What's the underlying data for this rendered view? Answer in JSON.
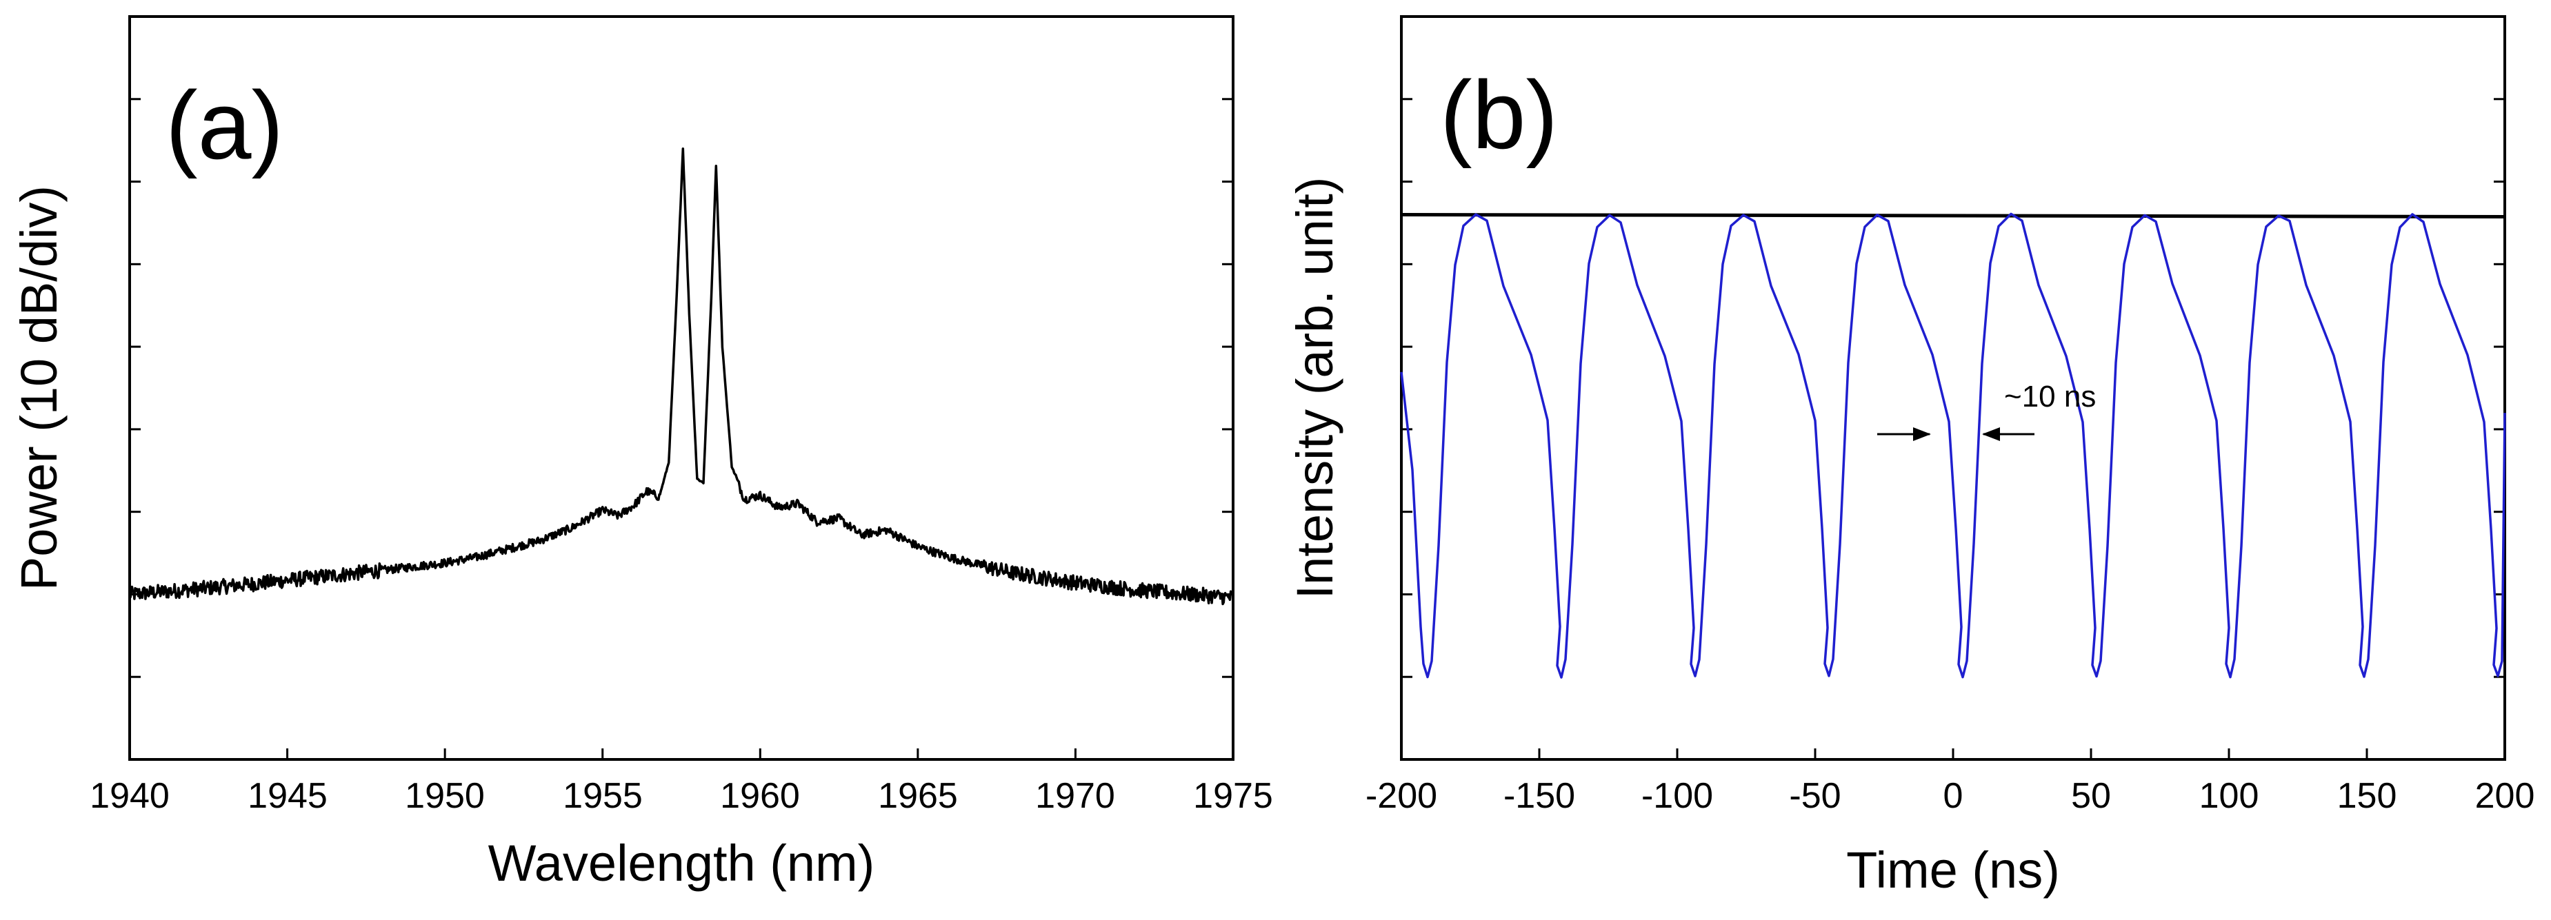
{
  "chart_data": [
    {
      "type": "line",
      "panel_label": "(a)",
      "xlabel": "Wavelength (nm)",
      "ylabel": "Power (10 dB/div)",
      "xlim": [
        1940,
        1975
      ],
      "ylim": [
        0,
        9
      ],
      "x_ticks": [
        "1940",
        "1945",
        "1950",
        "1955",
        "1960",
        "1965",
        "1970",
        "1975"
      ],
      "y_tick_values": [
        1,
        2,
        3,
        4,
        5,
        6,
        7,
        8
      ],
      "grid": false,
      "series": [
        {
          "name": "spectrum",
          "color": "#000000",
          "x": [
            1940,
            1942,
            1944,
            1946,
            1948,
            1950,
            1951,
            1952,
            1953,
            1954,
            1955,
            1955.5,
            1956,
            1956.4,
            1956.8,
            1957.1,
            1957.35,
            1957.55,
            1957.75,
            1958.0,
            1958.2,
            1958.45,
            1958.6,
            1958.8,
            1959.1,
            1959.5,
            1960,
            1960.6,
            1961.2,
            1961.8,
            1962.5,
            1963.2,
            1964,
            1965,
            1966,
            1967,
            1968,
            1970,
            1972,
            1975
          ],
          "y": [
            2.0,
            2.06,
            2.13,
            2.21,
            2.29,
            2.38,
            2.45,
            2.55,
            2.65,
            2.8,
            3.02,
            2.95,
            3.08,
            3.25,
            3.18,
            3.6,
            5.6,
            7.4,
            5.4,
            3.4,
            3.35,
            5.6,
            7.2,
            5.0,
            3.55,
            3.15,
            3.2,
            3.05,
            3.1,
            2.88,
            2.92,
            2.72,
            2.78,
            2.58,
            2.45,
            2.35,
            2.26,
            2.14,
            2.05,
            1.96
          ]
        }
      ]
    },
    {
      "type": "line",
      "panel_label": "(b)",
      "xlabel": "Time (ns)",
      "ylabel": "Intensity (arb. unit)",
      "xlim": [
        -200,
        200
      ],
      "ylim": [
        0,
        9
      ],
      "x_ticks": [
        "-200",
        "-150",
        "-100",
        "-50",
        "0",
        "50",
        "100",
        "150",
        "200"
      ],
      "y_tick_values": [
        1,
        2,
        3,
        4,
        5,
        6,
        7,
        8
      ],
      "grid": false,
      "annotation": "~10 ns",
      "series": [
        {
          "name": "pulse train",
          "color": "#1f1fcf",
          "period_ns": 48.5,
          "minima_ns": [
            -190.5,
            -142,
            -93.5,
            -45,
            3.5,
            52,
            100.5,
            149,
            197.5
          ],
          "peaks_ns": [
            -173,
            -124.5,
            -76,
            -27.5,
            21,
            69.5,
            118,
            166.5
          ],
          "min_y": 1.0,
          "max_y": 6.6
        },
        {
          "name": "cw level",
          "color": "#000000",
          "x": [
            -200,
            200
          ],
          "y": [
            6.6,
            6.6
          ]
        }
      ]
    }
  ]
}
